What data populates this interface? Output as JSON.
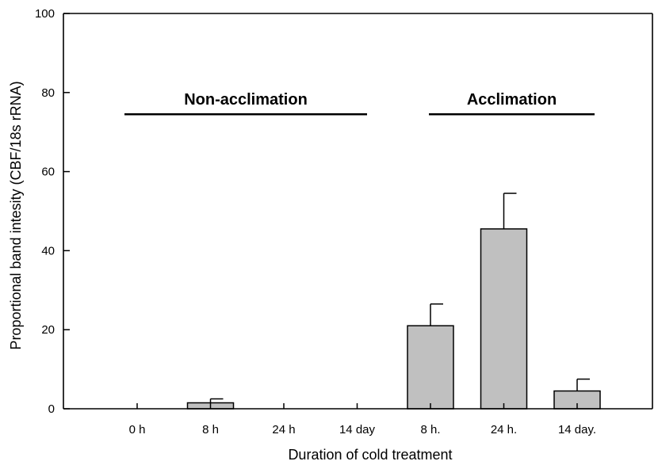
{
  "chart_data": {
    "type": "bar",
    "categories": [
      "0 h",
      "8 h",
      "24 h",
      "14 day",
      "8 h.",
      "24 h.",
      "14 day."
    ],
    "values": [
      0,
      1.5,
      0,
      0,
      21,
      45.5,
      4.5
    ],
    "errors": [
      0,
      1,
      0,
      0,
      5.5,
      9,
      3
    ],
    "xlabel": "Duration of cold treatment",
    "ylabel": "Proportional band intesity (CBF/18s rRNA)",
    "ylim": [
      0,
      100
    ],
    "yticks": [
      0,
      20,
      40,
      60,
      80,
      100
    ],
    "grid": false,
    "bar_color": "#c0c0c0",
    "groups": [
      {
        "label": "Non-acclimation",
        "category_range": [
          0,
          3
        ],
        "level": 74.5
      },
      {
        "label": "Acclimation",
        "category_range": [
          4,
          6
        ],
        "level": 74.5
      }
    ]
  }
}
